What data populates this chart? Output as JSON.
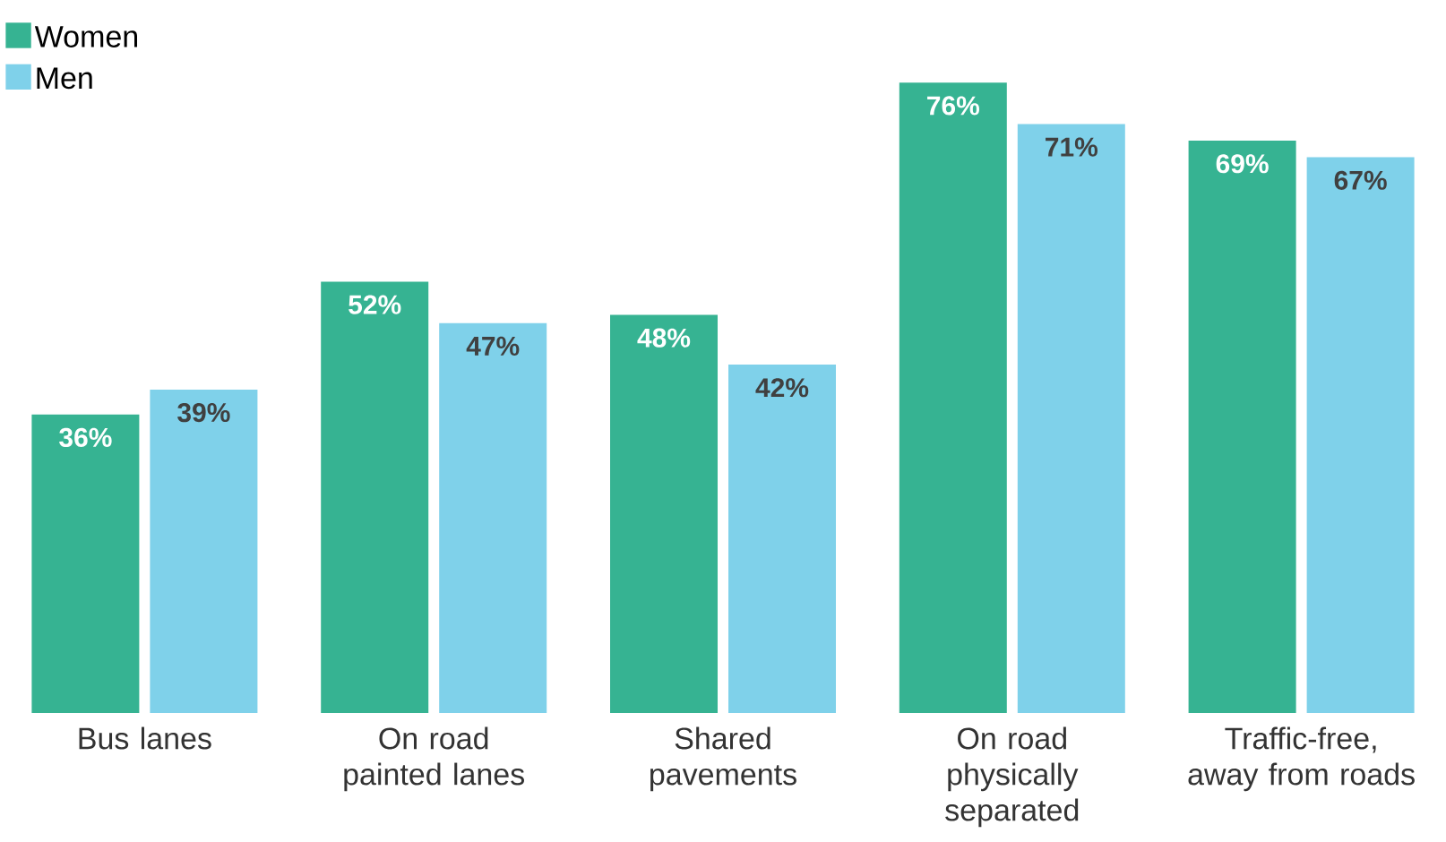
{
  "chart_data": {
    "type": "bar",
    "categories": [
      "Bus lanes",
      "On road painted lanes",
      "Shared pavements",
      "On road physically separated",
      "Traffic-free, away from roads"
    ],
    "series": [
      {
        "name": "Women",
        "color": "#36b392",
        "values": [
          36,
          52,
          48,
          76,
          69
        ],
        "value_labels": [
          "36%",
          "52%",
          "48%",
          "76%",
          "69%"
        ]
      },
      {
        "name": "Men",
        "color": "#7fd1ea",
        "values": [
          39,
          47,
          42,
          71,
          67
        ],
        "value_labels": [
          "39%",
          "47%",
          "42%",
          "71%",
          "67%"
        ]
      }
    ],
    "legend": "top left"
  }
}
